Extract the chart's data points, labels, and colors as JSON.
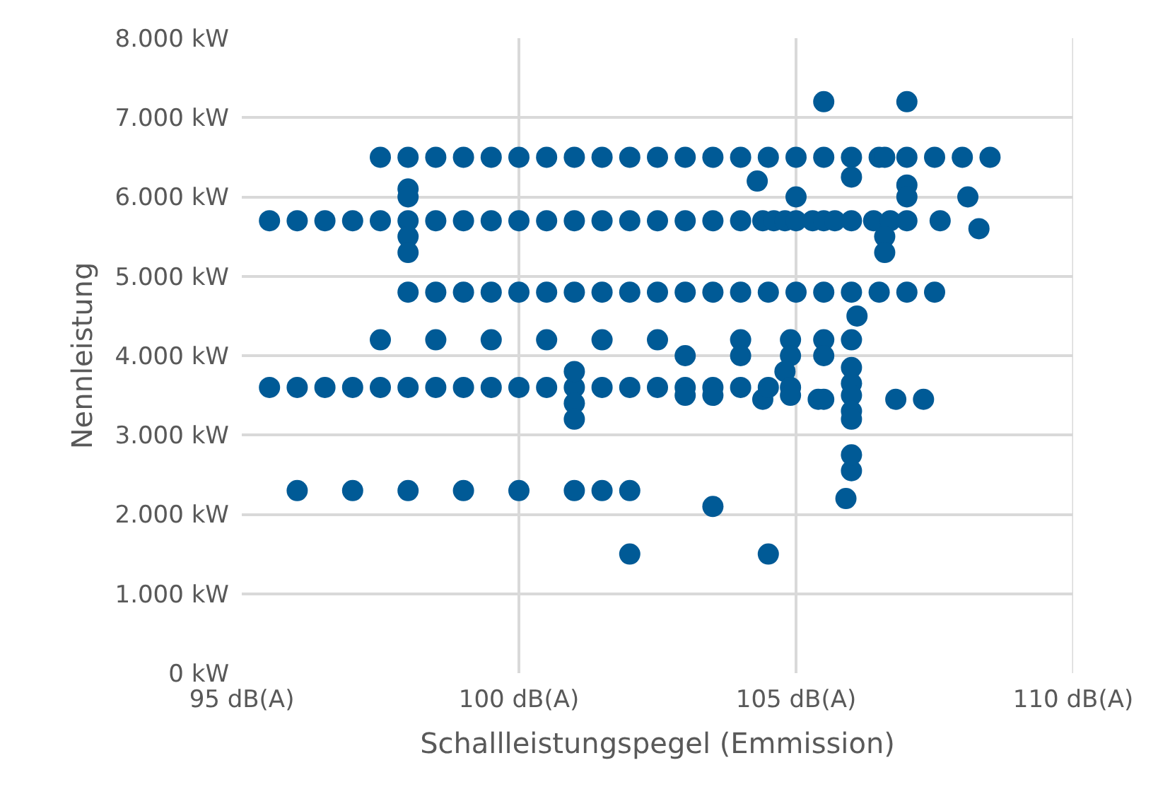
{
  "chart_data": {
    "type": "scatter",
    "xlabel": "Schallleistungspegel (Emmission)",
    "ylabel": "Nennleistung",
    "marker": "circle",
    "grid": true,
    "legend": false,
    "xlim": [
      95,
      110
    ],
    "xticks": [
      {
        "value": 95,
        "label": "95 dB(A)"
      },
      {
        "value": 100,
        "label": "100 dB(A)"
      },
      {
        "value": 105,
        "label": "105 dB(A)"
      },
      {
        "value": 110,
        "label": "110 dB(A)"
      }
    ],
    "ylim": [
      0,
      8000
    ],
    "yticks": [
      {
        "value": 0,
        "label": "0 kW"
      },
      {
        "value": 1000,
        "label": "1.000 kW"
      },
      {
        "value": 2000,
        "label": "2.000 kW"
      },
      {
        "value": 3000,
        "label": "3.000 kW"
      },
      {
        "value": 4000,
        "label": "4.000 kW"
      },
      {
        "value": 5000,
        "label": "5.000 kW"
      },
      {
        "value": 6000,
        "label": "6.000 kW"
      },
      {
        "value": 7000,
        "label": "7.000 kW"
      },
      {
        "value": 8000,
        "label": "8.000 kW"
      }
    ],
    "series": [
      {
        "color": "#005a96",
        "x": [
          97.5,
          98,
          98.5,
          99,
          99.5,
          100,
          100.5,
          101,
          101.5,
          102,
          102.5,
          103,
          103.5,
          104,
          104.5,
          105,
          105.5,
          106,
          106.5,
          106.6,
          107,
          107.5,
          108,
          108.5,
          95.5,
          96,
          96.5,
          97,
          97.5,
          98,
          98.5,
          99,
          99.5,
          100,
          100.5,
          101,
          101.5,
          102,
          102.5,
          103,
          103.5,
          104,
          104.4,
          104.6,
          104.8,
          105,
          105.3,
          105.5,
          105.7,
          106,
          106.4,
          106.7,
          107,
          107.6,
          98,
          98.5,
          99,
          99.5,
          100,
          100.5,
          101,
          101.5,
          102,
          102.5,
          103,
          103.5,
          104,
          104.5,
          105,
          105.5,
          106,
          106.5,
          107,
          107.5,
          97.5,
          98.5,
          99.5,
          100.5,
          101.5,
          102.5,
          103,
          104,
          104,
          104.9,
          104.9,
          105.5,
          105.5,
          106,
          106.1,
          95.5,
          96,
          96.5,
          97,
          97.5,
          98,
          98.5,
          99,
          99.5,
          100,
          100.5,
          101,
          101.5,
          102,
          102.5,
          103,
          103,
          103.5,
          103.5,
          104,
          104.4,
          104.5,
          104.8,
          104.9,
          104.9,
          105.4,
          105.5,
          106,
          106,
          106,
          106,
          106,
          106.8,
          107.3,
          101,
          101,
          101,
          96,
          97,
          98,
          99,
          100,
          101,
          101.5,
          102,
          102,
          104.5,
          103.5,
          105.9,
          106,
          106,
          105.5,
          107,
          98,
          98,
          98,
          98,
          104.3,
          105,
          106,
          107,
          107,
          108.1,
          108.3,
          106.6,
          106.6
        ],
        "values": [
          6500,
          6500,
          6500,
          6500,
          6500,
          6500,
          6500,
          6500,
          6500,
          6500,
          6500,
          6500,
          6500,
          6500,
          6500,
          6500,
          6500,
          6500,
          6500,
          6500,
          6500,
          6500,
          6500,
          6500,
          5700,
          5700,
          5700,
          5700,
          5700,
          5700,
          5700,
          5700,
          5700,
          5700,
          5700,
          5700,
          5700,
          5700,
          5700,
          5700,
          5700,
          5700,
          5700,
          5700,
          5700,
          5700,
          5700,
          5700,
          5700,
          5700,
          5700,
          5700,
          5700,
          5700,
          4800,
          4800,
          4800,
          4800,
          4800,
          4800,
          4800,
          4800,
          4800,
          4800,
          4800,
          4800,
          4800,
          4800,
          4800,
          4800,
          4800,
          4800,
          4800,
          4800,
          4200,
          4200,
          4200,
          4200,
          4200,
          4200,
          4000,
          4200,
          4000,
          4200,
          4000,
          4200,
          4000,
          4200,
          4500,
          3600,
          3600,
          3600,
          3600,
          3600,
          3600,
          3600,
          3600,
          3600,
          3600,
          3600,
          3600,
          3600,
          3600,
          3600,
          3600,
          3500,
          3600,
          3500,
          3600,
          3450,
          3600,
          3800,
          3600,
          3500,
          3450,
          3450,
          3850,
          3650,
          3500,
          3300,
          3200,
          3450,
          3450,
          3800,
          3400,
          3200,
          2300,
          2300,
          2300,
          2300,
          2300,
          2300,
          2300,
          2300,
          1500,
          1500,
          2100,
          2200,
          2550,
          2750,
          7200,
          7200,
          6100,
          6000,
          5500,
          5300,
          6200,
          6000,
          6250,
          6150,
          6000,
          6000,
          5600,
          5500,
          5300
        ]
      }
    ]
  }
}
